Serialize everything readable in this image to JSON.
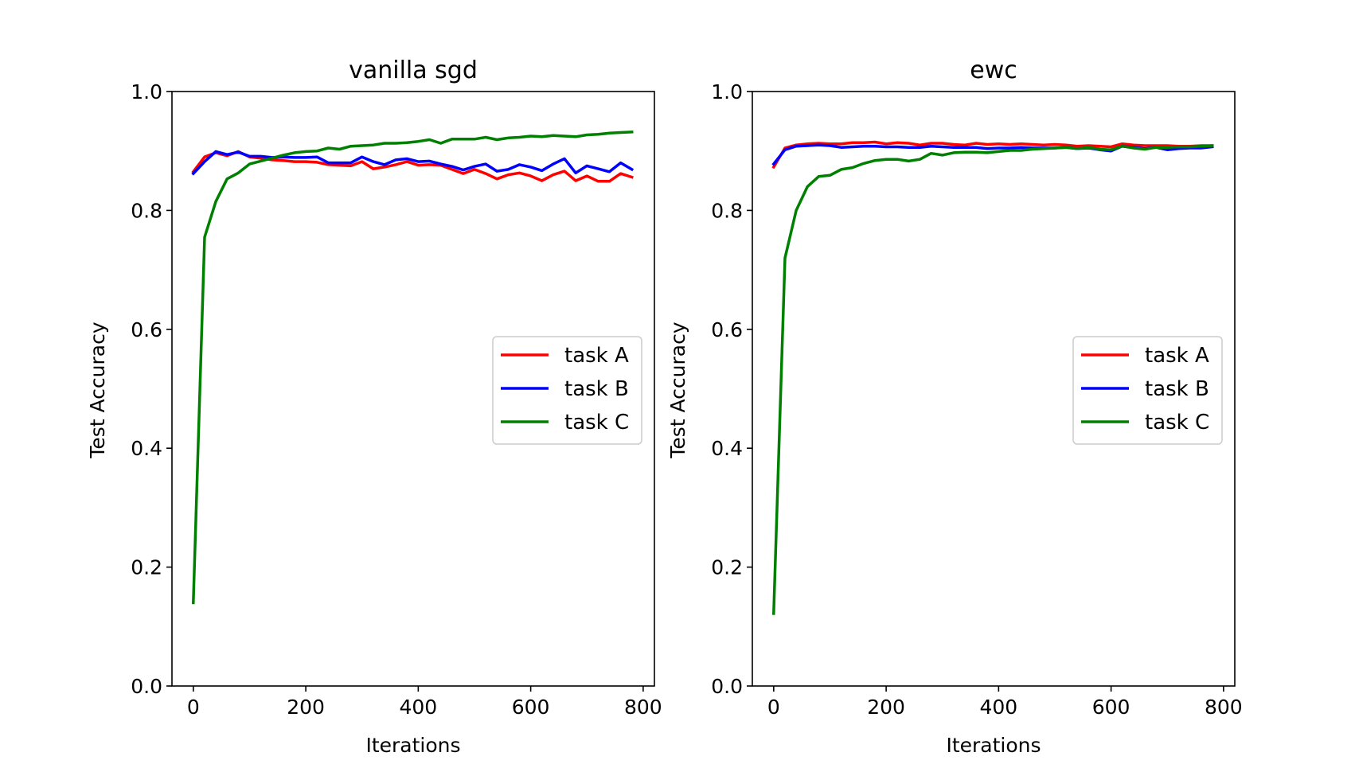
{
  "chart_data": [
    {
      "type": "line",
      "title": "vanilla sgd",
      "xlabel": "Iterations",
      "ylabel": "Test Accuracy",
      "xlim": [
        -38,
        820
      ],
      "ylim": [
        0.0,
        1.0
      ],
      "xticks": [
        0,
        200,
        400,
        600,
        800
      ],
      "yticks": [
        0.0,
        0.2,
        0.4,
        0.6,
        0.8,
        1.0
      ],
      "xtick_labels": [
        "0",
        "200",
        "400",
        "600",
        "800"
      ],
      "ytick_labels": [
        "0.0",
        "0.2",
        "0.4",
        "0.6",
        "0.8",
        "1.0"
      ],
      "grid": false,
      "legend_position": "center-right",
      "x": [
        0,
        20,
        40,
        60,
        80,
        100,
        120,
        140,
        160,
        180,
        200,
        220,
        240,
        260,
        280,
        300,
        320,
        340,
        360,
        380,
        400,
        420,
        440,
        460,
        480,
        500,
        520,
        540,
        560,
        580,
        600,
        620,
        640,
        660,
        680,
        700,
        720,
        740,
        760,
        780
      ],
      "series": [
        {
          "name": "task A",
          "color": "#ff0000",
          "values": [
            0.865,
            0.89,
            0.897,
            0.892,
            0.899,
            0.89,
            0.888,
            0.885,
            0.884,
            0.882,
            0.882,
            0.881,
            0.877,
            0.876,
            0.875,
            0.882,
            0.87,
            0.873,
            0.877,
            0.882,
            0.876,
            0.877,
            0.876,
            0.869,
            0.862,
            0.869,
            0.862,
            0.853,
            0.86,
            0.863,
            0.858,
            0.85,
            0.86,
            0.866,
            0.85,
            0.858,
            0.849,
            0.849,
            0.862,
            0.856
          ]
        },
        {
          "name": "task B",
          "color": "#0000ff",
          "values": [
            0.862,
            0.882,
            0.899,
            0.894,
            0.898,
            0.891,
            0.891,
            0.889,
            0.89,
            0.889,
            0.889,
            0.89,
            0.88,
            0.88,
            0.88,
            0.89,
            0.882,
            0.877,
            0.885,
            0.887,
            0.882,
            0.883,
            0.878,
            0.874,
            0.868,
            0.874,
            0.878,
            0.866,
            0.869,
            0.877,
            0.873,
            0.867,
            0.878,
            0.887,
            0.863,
            0.875,
            0.87,
            0.865,
            0.88,
            0.869
          ]
        },
        {
          "name": "task C",
          "color": "#008000",
          "values": [
            0.14,
            0.755,
            0.815,
            0.853,
            0.863,
            0.878,
            0.883,
            0.888,
            0.893,
            0.897,
            0.899,
            0.9,
            0.905,
            0.903,
            0.908,
            0.909,
            0.91,
            0.913,
            0.913,
            0.914,
            0.916,
            0.919,
            0.913,
            0.92,
            0.92,
            0.92,
            0.923,
            0.919,
            0.922,
            0.923,
            0.925,
            0.924,
            0.926,
            0.925,
            0.924,
            0.927,
            0.928,
            0.93,
            0.931,
            0.932
          ]
        }
      ]
    },
    {
      "type": "line",
      "title": "ewc",
      "xlabel": "Iterations",
      "ylabel": "Test Accuracy",
      "xlim": [
        -38,
        820
      ],
      "ylim": [
        0.0,
        1.0
      ],
      "xticks": [
        0,
        200,
        400,
        600,
        800
      ],
      "yticks": [
        0.0,
        0.2,
        0.4,
        0.6,
        0.8,
        1.0
      ],
      "xtick_labels": [
        "0",
        "200",
        "400",
        "600",
        "800"
      ],
      "ytick_labels": [
        "0.0",
        "0.2",
        "0.4",
        "0.6",
        "0.8",
        "1.0"
      ],
      "grid": false,
      "legend_position": "center-right",
      "x": [
        0,
        20,
        40,
        60,
        80,
        100,
        120,
        140,
        160,
        180,
        200,
        220,
        240,
        260,
        280,
        300,
        320,
        340,
        360,
        380,
        400,
        420,
        440,
        460,
        480,
        500,
        520,
        540,
        560,
        580,
        600,
        620,
        640,
        660,
        680,
        700,
        720,
        740,
        760,
        780
      ],
      "series": [
        {
          "name": "task A",
          "color": "#ff0000",
          "values": [
            0.873,
            0.905,
            0.91,
            0.912,
            0.913,
            0.912,
            0.912,
            0.914,
            0.914,
            0.915,
            0.912,
            0.914,
            0.913,
            0.91,
            0.913,
            0.913,
            0.911,
            0.91,
            0.913,
            0.911,
            0.912,
            0.911,
            0.912,
            0.911,
            0.91,
            0.911,
            0.91,
            0.908,
            0.909,
            0.908,
            0.907,
            0.912,
            0.91,
            0.909,
            0.909,
            0.909,
            0.908,
            0.908,
            0.909,
            0.909
          ]
        },
        {
          "name": "task B",
          "color": "#0000ff",
          "values": [
            0.878,
            0.902,
            0.908,
            0.909,
            0.91,
            0.909,
            0.906,
            0.907,
            0.908,
            0.908,
            0.907,
            0.907,
            0.906,
            0.906,
            0.908,
            0.907,
            0.906,
            0.906,
            0.906,
            0.904,
            0.905,
            0.905,
            0.906,
            0.905,
            0.905,
            0.905,
            0.906,
            0.904,
            0.905,
            0.902,
            0.9,
            0.908,
            0.906,
            0.904,
            0.906,
            0.902,
            0.904,
            0.905,
            0.905,
            0.907
          ]
        },
        {
          "name": "task C",
          "color": "#008000",
          "values": [
            0.122,
            0.72,
            0.8,
            0.84,
            0.857,
            0.859,
            0.869,
            0.872,
            0.879,
            0.884,
            0.886,
            0.886,
            0.883,
            0.886,
            0.896,
            0.893,
            0.897,
            0.898,
            0.898,
            0.897,
            0.899,
            0.901,
            0.901,
            0.903,
            0.904,
            0.905,
            0.906,
            0.904,
            0.906,
            0.903,
            0.902,
            0.908,
            0.905,
            0.903,
            0.906,
            0.906,
            0.907,
            0.907,
            0.908,
            0.909
          ]
        }
      ]
    }
  ]
}
